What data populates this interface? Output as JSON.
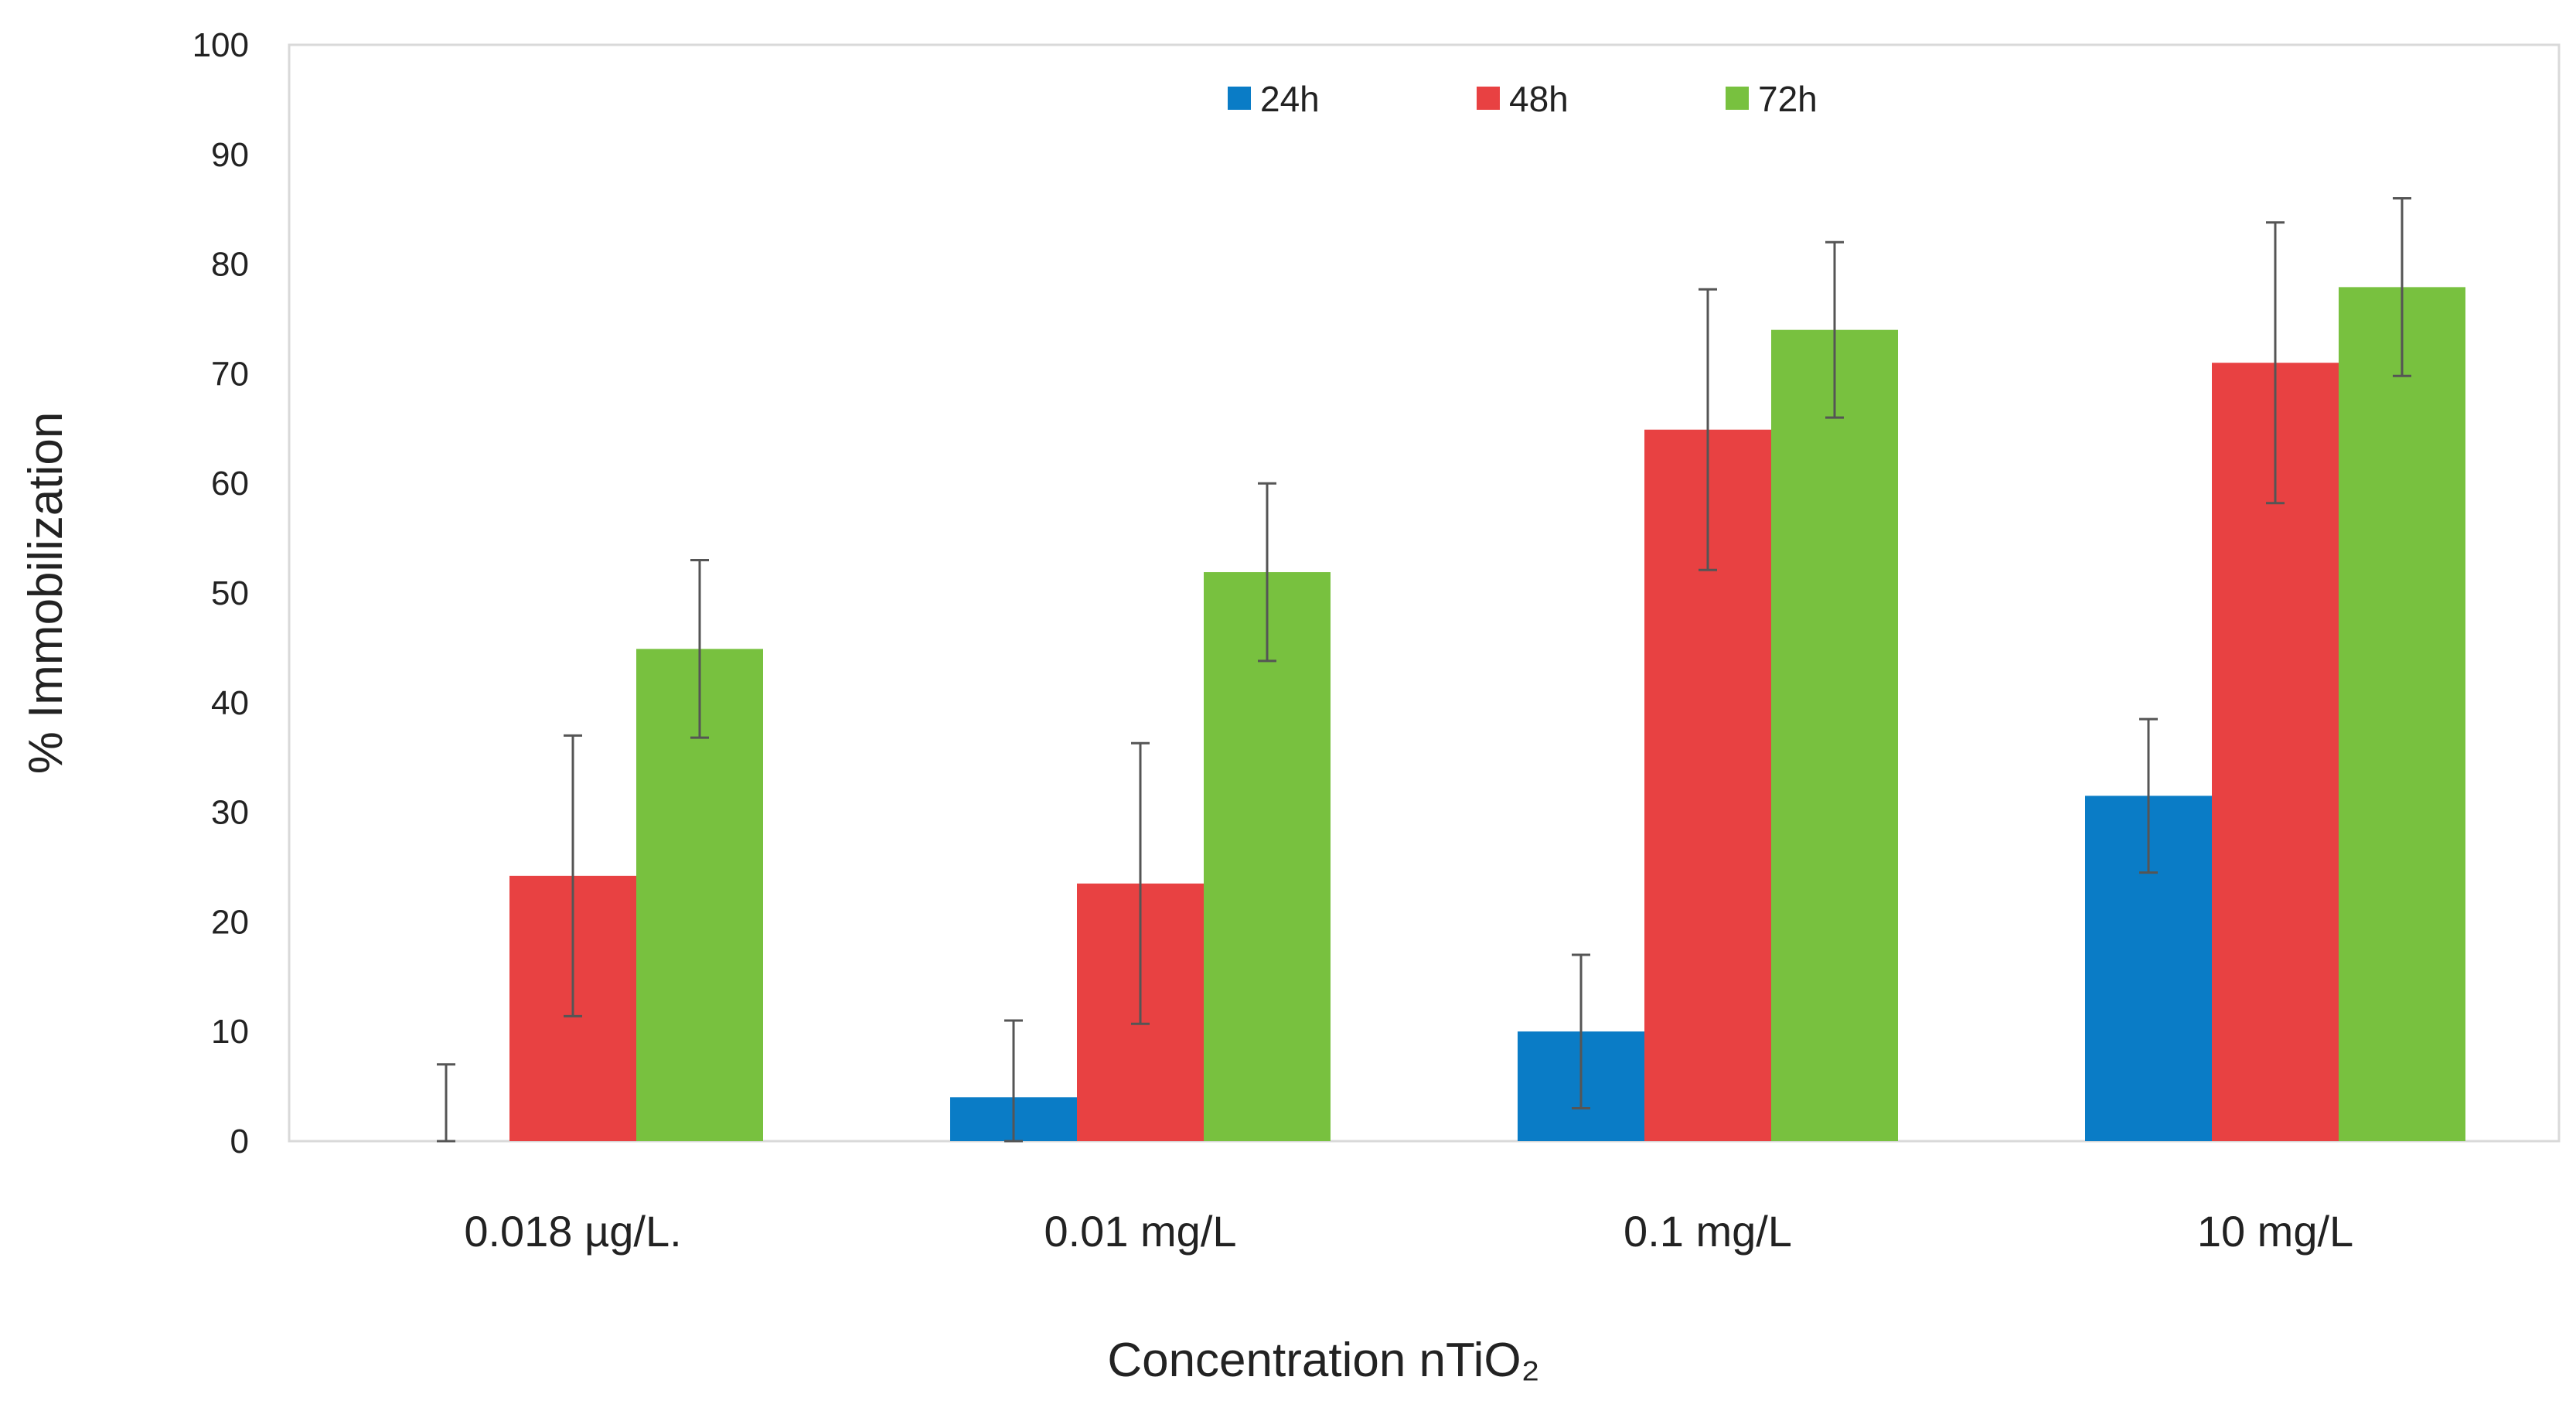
{
  "chart_data": {
    "type": "bar",
    "title": "",
    "xlabel": "Concentration nTiO₂",
    "ylabel": "% Immobilization",
    "ylim": [
      0,
      100
    ],
    "yticks": [
      "0",
      "10",
      "20",
      "30",
      "40",
      "50",
      "60",
      "70",
      "80",
      "90",
      "100"
    ],
    "grid": false,
    "legend_position": "top-center",
    "categories": [
      "0.018 µg/L.",
      "0.01 mg/L",
      "0.1 mg/L",
      "10 mg/L"
    ],
    "series": [
      {
        "name": "24h",
        "color": "#0a7cc6",
        "values": [
          0,
          4,
          10,
          31.5
        ],
        "error": [
          7,
          7,
          7,
          7
        ]
      },
      {
        "name": "48h",
        "color": "#e84142",
        "values": [
          24.2,
          23.5,
          64.9,
          71
        ],
        "error": [
          12.8,
          12.8,
          12.8,
          12.8
        ]
      },
      {
        "name": "72h",
        "color": "#78c13f",
        "values": [
          44.9,
          51.9,
          74,
          77.9
        ],
        "error": [
          8.1,
          8.1,
          8,
          8.1
        ]
      }
    ]
  }
}
